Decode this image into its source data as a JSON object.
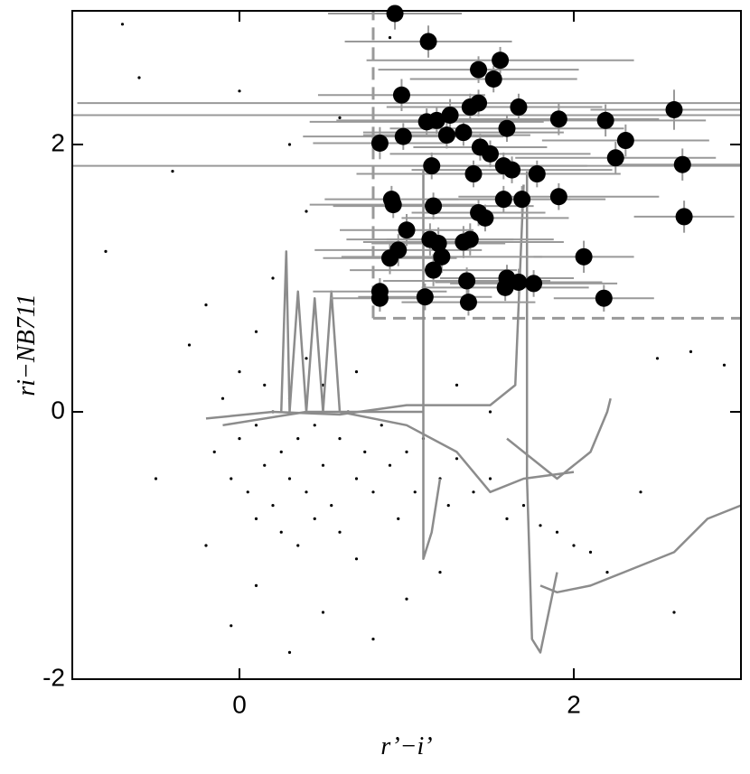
{
  "chart_data": {
    "type": "scatter",
    "x_label": "r’−i’",
    "y_label": "ri−NB711",
    "xlim": [
      -1,
      3
    ],
    "ylim": [
      -2,
      3
    ],
    "xticks": [
      0,
      2
    ],
    "yticks": [
      -2,
      0,
      2
    ],
    "cuts": {
      "x": 0.8,
      "y": 0.7,
      "color": "#999999"
    },
    "background": {
      "color": "#000000",
      "x": [
        -0.15,
        -0.1,
        -0.05,
        0.0,
        0.0,
        0.05,
        0.1,
        0.1,
        0.15,
        0.15,
        0.2,
        0.2,
        0.25,
        0.25,
        0.3,
        0.3,
        0.35,
        0.35,
        0.4,
        0.4,
        0.45,
        0.45,
        0.5,
        0.5,
        0.55,
        0.6,
        0.6,
        0.65,
        0.7,
        0.7,
        0.75,
        0.8,
        0.85,
        0.9,
        0.95,
        1.0,
        1.05,
        1.1,
        1.2,
        1.25,
        1.3,
        1.4,
        1.5,
        1.6,
        1.7,
        1.8,
        1.9,
        2.0,
        2.1,
        2.2,
        -0.2,
        -0.3,
        -0.4,
        -0.6,
        -0.8,
        -0.5,
        0.1,
        0.5,
        0.8,
        1.0,
        0.2,
        0.4,
        -0.2,
        0.6,
        0.9,
        -0.7,
        0.0,
        0.3,
        2.5,
        2.7,
        2.9,
        2.4,
        1.3,
        1.5,
        0.7,
        0.1,
        -0.05,
        0.3,
        1.2,
        2.6
      ],
      "y": [
        -0.3,
        0.1,
        -0.5,
        -0.2,
        0.3,
        -0.6,
        -0.1,
        -0.8,
        0.2,
        -0.4,
        -0.7,
        0.0,
        -0.3,
        -0.9,
        0.1,
        -0.5,
        -0.2,
        -1.0,
        0.4,
        -0.6,
        -0.1,
        -0.8,
        0.2,
        -0.4,
        -0.7,
        -0.2,
        -0.9,
        0.0,
        -0.5,
        -1.1,
        -0.3,
        -0.6,
        -0.1,
        -0.4,
        -0.8,
        -0.3,
        -0.6,
        -0.2,
        -0.5,
        -0.7,
        -0.35,
        -0.6,
        -0.5,
        -0.8,
        -0.7,
        -0.85,
        -0.9,
        -1.0,
        -1.05,
        -1.2,
        -1.0,
        0.5,
        1.8,
        2.5,
        1.2,
        -0.5,
        -1.3,
        -1.5,
        -1.7,
        -1.4,
        1.0,
        1.5,
        0.8,
        2.2,
        2.8,
        2.9,
        2.4,
        2.0,
        0.4,
        0.45,
        0.35,
        -0.6,
        0.2,
        0.0,
        0.3,
        0.6,
        -1.6,
        -1.8,
        -1.2,
        -1.5
      ]
    },
    "tracks": [
      {
        "color": "#8c8c8c",
        "x": [
          -0.2,
          0.2,
          0.6,
          1.0,
          1.5,
          1.65,
          1.7
        ],
        "y": [
          -0.05,
          0.0,
          -0.02,
          0.05,
          0.05,
          0.2,
          1.7
        ]
      },
      {
        "color": "#8c8c8c",
        "x": [
          -0.1,
          0.4,
          0.8,
          1.1,
          1.1,
          1.1,
          1.15,
          1.2
        ],
        "y": [
          -0.1,
          0.0,
          0.0,
          0.0,
          1.8,
          -1.1,
          -0.9,
          -0.5
        ]
      },
      {
        "color": "#8c8c8c",
        "x": [
          1.8,
          1.9,
          2.1,
          2.3,
          2.6,
          2.8,
          2.9,
          3.0
        ],
        "y": [
          -1.3,
          -1.35,
          -1.3,
          -1.2,
          -1.05,
          -0.8,
          -0.75,
          -0.7
        ]
      },
      {
        "color": "#8c8c8c",
        "x": [
          1.72,
          1.72,
          1.75,
          1.8,
          1.85,
          1.9
        ],
        "y": [
          1.8,
          -0.5,
          -1.7,
          -1.8,
          -1.5,
          -1.2
        ]
      },
      {
        "color": "#8c8c8c",
        "x": [
          0.25,
          0.28,
          0.3,
          0.35,
          0.4,
          0.45,
          0.5,
          0.55,
          0.6
        ],
        "y": [
          0.0,
          1.2,
          0.0,
          0.9,
          0.0,
          0.85,
          0.0,
          0.9,
          0.0
        ]
      },
      {
        "color": "#8c8c8c",
        "x": [
          0.6,
          1.0,
          1.3,
          1.5,
          1.7,
          2.0
        ],
        "y": [
          0.0,
          -0.1,
          -0.3,
          -0.6,
          -0.5,
          -0.45
        ]
      },
      {
        "color": "#8c8c8c",
        "x": [
          1.6,
          1.9,
          2.1,
          2.2,
          2.22
        ],
        "y": [
          -0.2,
          -0.5,
          -0.3,
          0.0,
          0.1
        ]
      }
    ],
    "points": {
      "color": "#000000",
      "error_color": "#999999",
      "x": [
        0.93,
        1.13,
        1.43,
        1.56,
        1.52,
        0.97,
        0.84,
        0.98,
        1.12,
        1.18,
        1.26,
        1.24,
        1.34,
        1.38,
        1.43,
        1.44,
        1.5,
        1.58,
        1.6,
        1.67,
        1.63,
        1.78,
        1.91,
        2.19,
        2.31,
        2.25,
        2.6,
        2.65,
        2.66,
        1.91,
        1.69,
        1.58,
        1.15,
        1.4,
        0.91,
        0.92,
        1.16,
        1.43,
        1.47,
        1.0,
        1.14,
        1.19,
        1.38,
        1.34,
        0.95,
        0.9,
        1.21,
        1.16,
        2.06,
        0.84,
        0.84,
        1.11,
        1.36,
        1.37,
        1.59,
        1.6,
        1.67,
        1.76,
        2.18
      ],
      "y": [
        2.98,
        2.77,
        2.56,
        2.63,
        2.49,
        2.37,
        2.01,
        2.06,
        2.17,
        2.18,
        2.22,
        2.07,
        2.09,
        2.28,
        2.31,
        1.98,
        1.93,
        1.84,
        2.12,
        2.28,
        1.81,
        1.78,
        2.19,
        2.18,
        2.03,
        1.9,
        2.26,
        1.85,
        1.46,
        1.61,
        1.59,
        1.59,
        1.84,
        1.78,
        1.59,
        1.55,
        1.54,
        1.49,
        1.45,
        1.36,
        1.29,
        1.26,
        1.29,
        1.27,
        1.21,
        1.15,
        1.16,
        1.06,
        1.16,
        0.9,
        0.85,
        0.86,
        0.98,
        0.82,
        0.93,
        1.0,
        0.97,
        0.96,
        0.85
      ],
      "xerr": [
        0.4,
        0.5,
        0.6,
        0.8,
        0.5,
        0.5,
        0.4,
        0.6,
        0.7,
        0.6,
        2.3,
        0.5,
        0.6,
        0.5,
        2.4,
        0.4,
        0.6,
        0.5,
        0.7,
        0.5,
        0.6,
        0.5,
        0.6,
        0.6,
        0.5,
        0.6,
        0.5,
        0.4,
        0.3,
        0.6,
        0.5,
        0.4,
        2.2,
        0.7,
        0.4,
        0.5,
        0.6,
        0.4,
        0.5,
        0.4,
        0.5,
        0.4,
        0.5,
        0.6,
        0.5,
        0.4,
        0.6,
        0.5,
        0.3,
        0.4,
        0.3,
        0.4,
        0.5,
        0.4,
        0.5,
        0.4,
        0.5,
        0.5,
        0.3
      ],
      "yerr": [
        0.12,
        0.12,
        0.1,
        0.1,
        0.1,
        0.12,
        0.12,
        0.1,
        0.1,
        0.1,
        0.12,
        0.1,
        0.1,
        0.1,
        0.1,
        0.1,
        0.1,
        0.1,
        0.1,
        0.1,
        0.1,
        0.1,
        0.12,
        0.12,
        0.12,
        0.12,
        0.15,
        0.12,
        0.12,
        0.1,
        0.1,
        0.1,
        0.1,
        0.1,
        0.1,
        0.1,
        0.1,
        0.1,
        0.1,
        0.12,
        0.12,
        0.12,
        0.12,
        0.12,
        0.12,
        0.12,
        0.12,
        0.12,
        0.12,
        0.1,
        0.1,
        0.1,
        0.1,
        0.1,
        0.1,
        0.1,
        0.1,
        0.1,
        0.1
      ]
    }
  }
}
